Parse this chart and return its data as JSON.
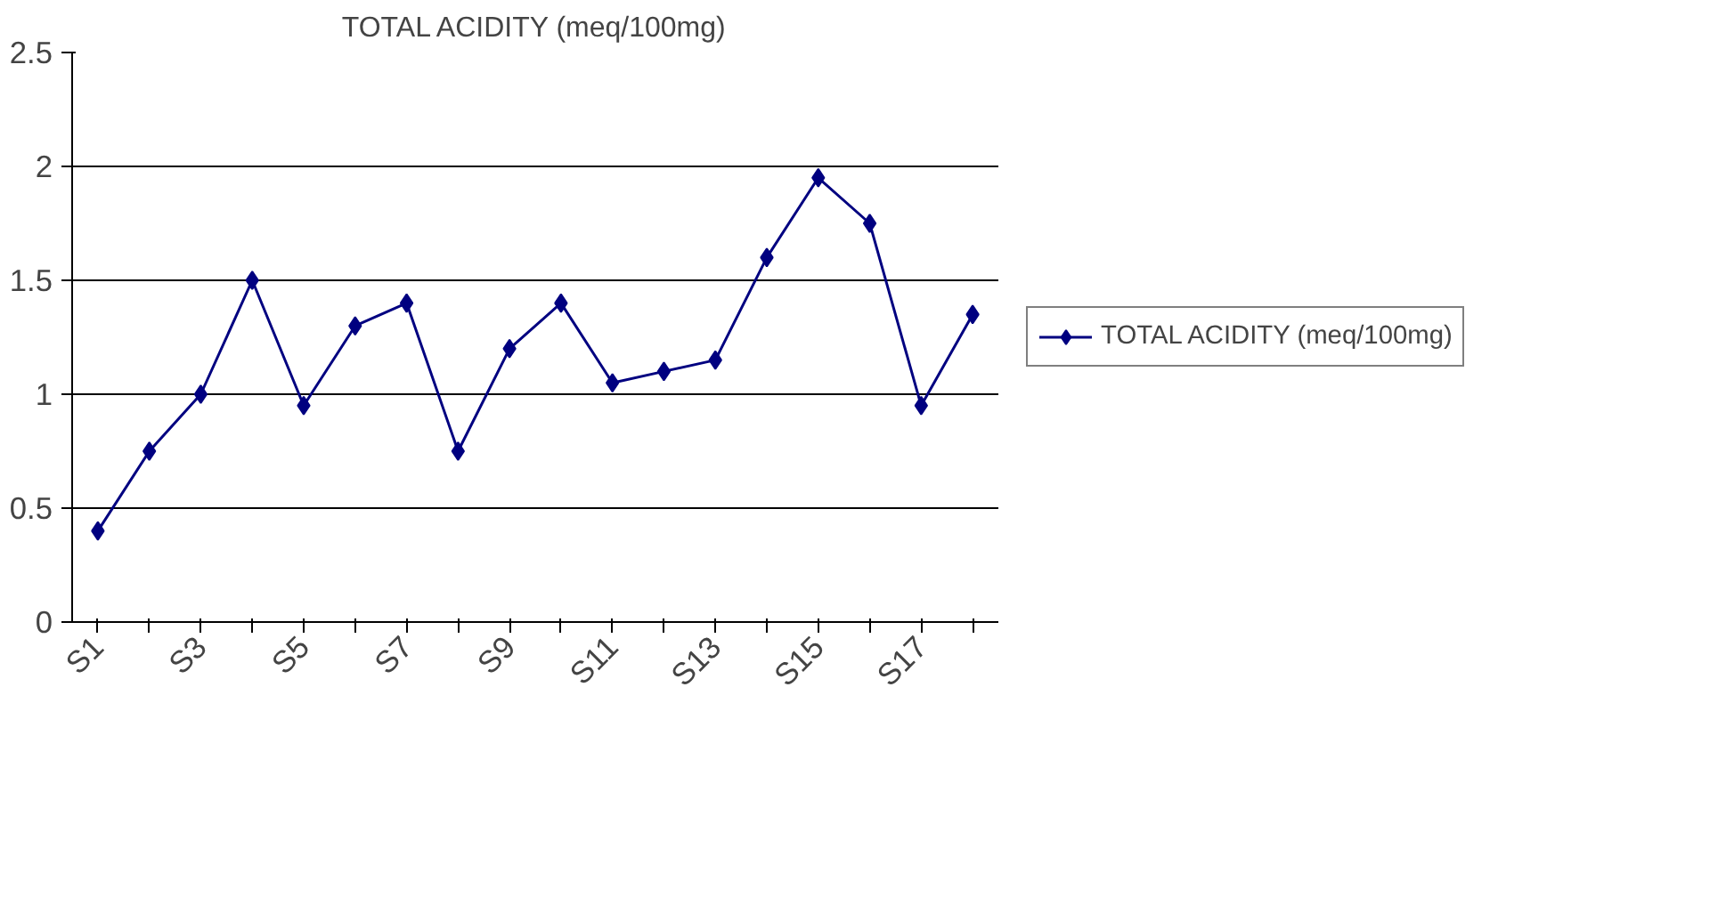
{
  "chart_data": {
    "type": "line",
    "title": "TOTAL ACIDITY (meq/100mg)",
    "categories": [
      "S1",
      null,
      "S3",
      null,
      "S5",
      null,
      "S7",
      null,
      "S9",
      null,
      "S11",
      null,
      "S13",
      null,
      "S15",
      null,
      "S17",
      null
    ],
    "series": [
      {
        "name": "TOTAL ACIDITY (meq/100mg)",
        "color": "#000080",
        "values": [
          0.4,
          0.75,
          1.0,
          1.5,
          0.95,
          1.3,
          1.4,
          0.75,
          1.2,
          1.4,
          1.05,
          1.1,
          1.15,
          1.6,
          1.95,
          1.75,
          0.95,
          1.35
        ]
      }
    ],
    "ylim": [
      0,
      2.5
    ],
    "yticks": [
      0,
      0.5,
      1,
      1.5,
      2,
      2.5
    ],
    "grid": "y",
    "legend": "right",
    "marker": "diamond",
    "line_style": "solid"
  }
}
